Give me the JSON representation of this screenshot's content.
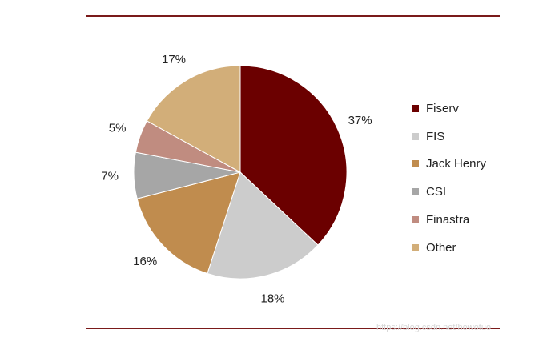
{
  "chart_data": {
    "type": "pie",
    "categories": [
      "Fiserv",
      "FIS",
      "Jack Henry",
      "CSI",
      "Finastra",
      "Other"
    ],
    "values": [
      37,
      18,
      16,
      7,
      5,
      17
    ],
    "value_labels": [
      "37%",
      "18%",
      "16%",
      "7%",
      "5%",
      "17%"
    ],
    "colors": [
      "#6b0000",
      "#cccccc",
      "#c08c4e",
      "#a6a6a6",
      "#c08c80",
      "#d2ae79"
    ],
    "start_angle": "12 o'clock",
    "direction": "clockwise",
    "legend_position": "right"
  },
  "watermark": "https://blog.csdn.net/howotuo"
}
